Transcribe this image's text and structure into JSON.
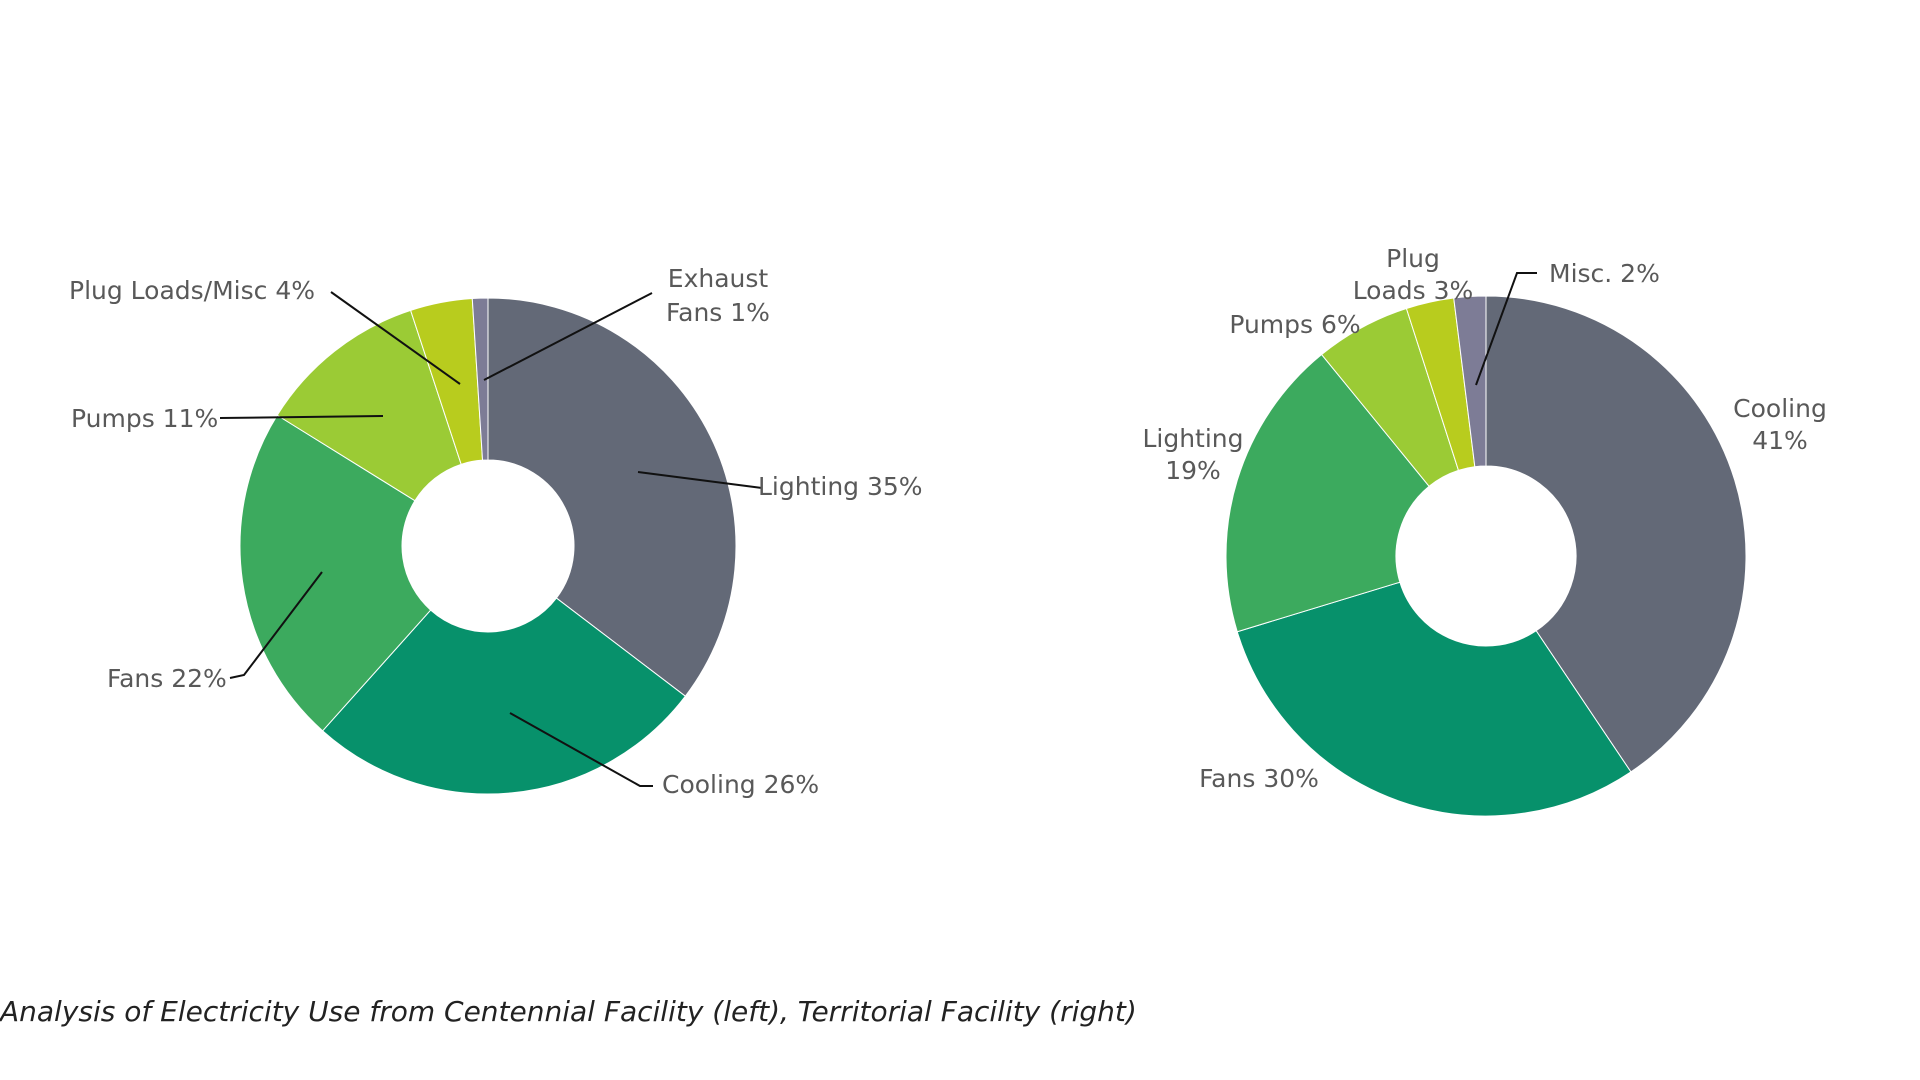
{
  "caption": "Analysis of Electricity Use from Centennial Facility (left), Territorial Facility (right)",
  "chart_data": [
    {
      "type": "pie",
      "donut": true,
      "title": "",
      "slices": [
        {
          "category": "Lighting",
          "value": 35,
          "label": [
            "Lighting 35%"
          ],
          "color": "#636977"
        },
        {
          "category": "Cooling",
          "value": 26,
          "label": [
            "Cooling 26%"
          ],
          "color": "#07916B"
        },
        {
          "category": "Fans",
          "value": 22,
          "label": [
            "Fans 22%"
          ],
          "color": "#3CAA5E"
        },
        {
          "category": "Pumps",
          "value": 11,
          "label": [
            "Pumps 11%"
          ],
          "color": "#9BCB35"
        },
        {
          "category": "Plug Loads/Misc",
          "value": 4,
          "label": [
            "Plug Loads/Misc 4%"
          ],
          "color": "#B8CC1E"
        },
        {
          "category": "Exhaust Fans",
          "value": 1,
          "label": [
            "Exhaust",
            "Fans 1%"
          ],
          "color": "#7D7C96"
        }
      ]
    },
    {
      "type": "pie",
      "donut": true,
      "title": "",
      "slices": [
        {
          "category": "Cooling",
          "value": 41,
          "label": [
            "Cooling",
            "41%"
          ],
          "color": "#636977"
        },
        {
          "category": "Fans",
          "value": 30,
          "label": [
            "Fans 30%"
          ],
          "color": "#07916B"
        },
        {
          "category": "Lighting",
          "value": 19,
          "label": [
            "Lighting",
            "19%"
          ],
          "color": "#3CAA5E"
        },
        {
          "category": "Pumps",
          "value": 6,
          "label": [
            "Pumps 6%"
          ],
          "color": "#9BCB35"
        },
        {
          "category": "Plug Loads",
          "value": 3,
          "label": [
            "Plug",
            "Loads 3%"
          ],
          "color": "#B8CC1E"
        },
        {
          "category": "Misc.",
          "value": 2,
          "label": [
            "Misc. 2%"
          ],
          "color": "#7D7C96"
        }
      ]
    }
  ]
}
